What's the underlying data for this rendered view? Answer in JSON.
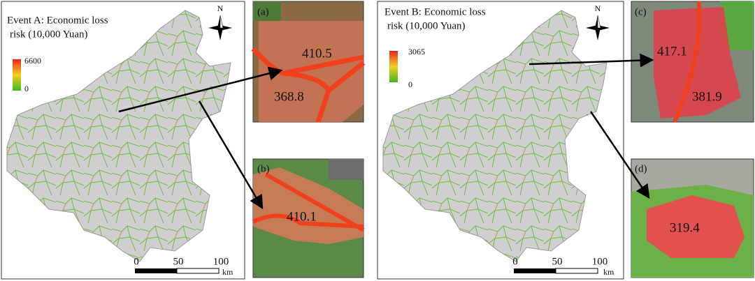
{
  "panels": [
    {
      "title": "Event A: Economic loss",
      "subtitle": "risk (10,000 Yuan)",
      "north": "N",
      "legend": {
        "max": 6600,
        "min": 0
      },
      "scale": {
        "ticks": [
          0,
          50,
          100
        ],
        "unit": "km"
      }
    },
    {
      "title": "Event B: Economic loss",
      "subtitle": "risk (10,000 Yuan)",
      "north": "N",
      "legend": {
        "max": 3065,
        "min": 0
      },
      "scale": {
        "ticks": [
          0,
          50,
          100
        ],
        "unit": "km"
      }
    }
  ],
  "insets": [
    {
      "label": "(a)",
      "values": [
        410.5,
        368.8
      ]
    },
    {
      "label": "(b)",
      "values": [
        410.1
      ]
    },
    {
      "label": "(c)",
      "values": [
        417.1,
        381.9
      ]
    },
    {
      "label": "(d)",
      "values": [
        319.4
      ]
    }
  ]
}
